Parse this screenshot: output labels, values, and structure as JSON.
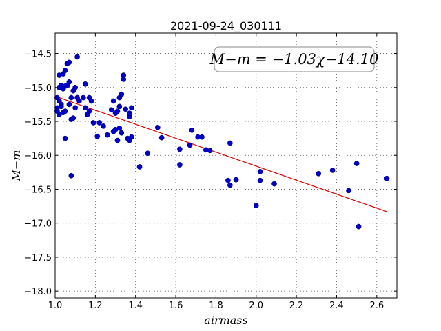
{
  "chart_data": {
    "type": "scatter",
    "title": "2021-09-24_030111",
    "xlabel": "airmass",
    "ylabel": "M−m",
    "xlim": [
      1.0,
      2.7
    ],
    "ylim": [
      -18.1,
      -14.2
    ],
    "xticks": [
      1.0,
      1.2,
      1.4,
      1.6,
      1.8,
      2.0,
      2.2,
      2.4,
      2.6
    ],
    "xtick_labels": [
      "1.0",
      "1.2",
      "1.4",
      "1.6",
      "1.8",
      "2.0",
      "2.2",
      "2.4",
      "2.6"
    ],
    "yticks": [
      -14.5,
      -15.0,
      -15.5,
      -16.0,
      -16.5,
      -17.0,
      -17.5,
      -18.0
    ],
    "ytick_labels": [
      "−14.5",
      "−15.0",
      "−15.5",
      "−16.0",
      "−16.5",
      "−17.0",
      "−17.5",
      "−18.0"
    ],
    "grid": true,
    "annotation": "M−m = −1.03χ−14.10",
    "annotation_position": "top-right",
    "marker_color": "#0000cc",
    "fit_color": "#dd0000",
    "fit_line": {
      "slope": -1.03,
      "intercept": -14.1,
      "x_range": [
        1.02,
        2.65
      ]
    },
    "points": [
      {
        "x": 1.01,
        "y": -15.15
      },
      {
        "x": 1.01,
        "y": -15.3
      },
      {
        "x": 1.01,
        "y": -15.35
      },
      {
        "x": 1.02,
        "y": -15.0
      },
      {
        "x": 1.02,
        "y": -14.82
      },
      {
        "x": 1.02,
        "y": -15.2
      },
      {
        "x": 1.02,
        "y": -15.4
      },
      {
        "x": 1.03,
        "y": -15.25
      },
      {
        "x": 1.03,
        "y": -14.97
      },
      {
        "x": 1.03,
        "y": -15.28
      },
      {
        "x": 1.04,
        "y": -14.8
      },
      {
        "x": 1.04,
        "y": -15.37
      },
      {
        "x": 1.04,
        "y": -15.02
      },
      {
        "x": 1.05,
        "y": -14.98
      },
      {
        "x": 1.05,
        "y": -14.75
      },
      {
        "x": 1.05,
        "y": -15.35
      },
      {
        "x": 1.05,
        "y": -15.75
      },
      {
        "x": 1.06,
        "y": -14.65
      },
      {
        "x": 1.06,
        "y": -14.97
      },
      {
        "x": 1.07,
        "y": -14.63
      },
      {
        "x": 1.07,
        "y": -14.92
      },
      {
        "x": 1.07,
        "y": -15.25
      },
      {
        "x": 1.08,
        "y": -15.15
      },
      {
        "x": 1.08,
        "y": -15.47
      },
      {
        "x": 1.08,
        "y": -16.3
      },
      {
        "x": 1.09,
        "y": -15.45
      },
      {
        "x": 1.09,
        "y": -15.05
      },
      {
        "x": 1.1,
        "y": -15.0
      },
      {
        "x": 1.1,
        "y": -15.3
      },
      {
        "x": 1.11,
        "y": -14.55
      },
      {
        "x": 1.11,
        "y": -15.15
      },
      {
        "x": 1.12,
        "y": -15.2
      },
      {
        "x": 1.14,
        "y": -15.15
      },
      {
        "x": 1.15,
        "y": -15.3
      },
      {
        "x": 1.15,
        "y": -14.95
      },
      {
        "x": 1.16,
        "y": -15.4
      },
      {
        "x": 1.17,
        "y": -15.35
      },
      {
        "x": 1.17,
        "y": -15.15
      },
      {
        "x": 1.18,
        "y": -15.2
      },
      {
        "x": 1.19,
        "y": -15.52
      },
      {
        "x": 1.21,
        "y": -15.72
      },
      {
        "x": 1.22,
        "y": -15.52
      },
      {
        "x": 1.24,
        "y": -15.57
      },
      {
        "x": 1.26,
        "y": -15.7
      },
      {
        "x": 1.28,
        "y": -15.33
      },
      {
        "x": 1.29,
        "y": -15.2
      },
      {
        "x": 1.29,
        "y": -15.65
      },
      {
        "x": 1.3,
        "y": -15.38
      },
      {
        "x": 1.3,
        "y": -15.62
      },
      {
        "x": 1.31,
        "y": -15.35
      },
      {
        "x": 1.31,
        "y": -15.78
      },
      {
        "x": 1.32,
        "y": -15.6
      },
      {
        "x": 1.32,
        "y": -15.15
      },
      {
        "x": 1.32,
        "y": -15.28
      },
      {
        "x": 1.33,
        "y": -15.1
      },
      {
        "x": 1.33,
        "y": -15.67
      },
      {
        "x": 1.34,
        "y": -14.82
      },
      {
        "x": 1.34,
        "y": -14.88
      },
      {
        "x": 1.35,
        "y": -15.32
      },
      {
        "x": 1.36,
        "y": -15.75
      },
      {
        "x": 1.37,
        "y": -15.43
      },
      {
        "x": 1.37,
        "y": -15.38
      },
      {
        "x": 1.37,
        "y": -15.78
      },
      {
        "x": 1.38,
        "y": -15.3
      },
      {
        "x": 1.38,
        "y": -15.73
      },
      {
        "x": 1.42,
        "y": -16.17
      },
      {
        "x": 1.46,
        "y": -15.97
      },
      {
        "x": 1.51,
        "y": -15.59
      },
      {
        "x": 1.53,
        "y": -15.74
      },
      {
        "x": 1.62,
        "y": -15.91
      },
      {
        "x": 1.62,
        "y": -16.14
      },
      {
        "x": 1.67,
        "y": -15.85
      },
      {
        "x": 1.68,
        "y": -15.63
      },
      {
        "x": 1.71,
        "y": -15.73
      },
      {
        "x": 1.73,
        "y": -15.73
      },
      {
        "x": 1.75,
        "y": -15.92
      },
      {
        "x": 1.77,
        "y": -15.93
      },
      {
        "x": 1.86,
        "y": -16.37
      },
      {
        "x": 1.87,
        "y": -15.82
      },
      {
        "x": 1.87,
        "y": -16.44
      },
      {
        "x": 1.9,
        "y": -16.36
      },
      {
        "x": 2.0,
        "y": -16.74
      },
      {
        "x": 2.02,
        "y": -16.24
      },
      {
        "x": 2.02,
        "y": -16.37
      },
      {
        "x": 2.09,
        "y": -16.42
      },
      {
        "x": 2.31,
        "y": -16.27
      },
      {
        "x": 2.38,
        "y": -16.22
      },
      {
        "x": 2.46,
        "y": -16.52
      },
      {
        "x": 2.5,
        "y": -16.12
      },
      {
        "x": 2.51,
        "y": -17.05
      },
      {
        "x": 2.65,
        "y": -16.34
      }
    ]
  }
}
